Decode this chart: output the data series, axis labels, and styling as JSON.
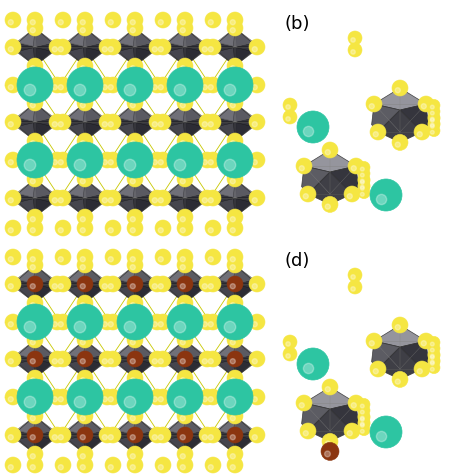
{
  "fig_width": 4.74,
  "fig_height": 4.74,
  "dpi": 100,
  "background_color": "#ffffff",
  "label_b": "(b)",
  "label_d": "(d)",
  "colors": {
    "yellow": "#F5E642",
    "teal": "#2DC5A2",
    "brown": "#8B3510",
    "oct_main": "#4A4A52",
    "oct_light": "#6A6A72",
    "oct_dark": "#2A2A32",
    "oct_lighter": "#8A8A92",
    "bg": "#ffffff",
    "bond_line": "#C8B800"
  },
  "label_b_fontsize": 13,
  "label_d_fontsize": 13
}
